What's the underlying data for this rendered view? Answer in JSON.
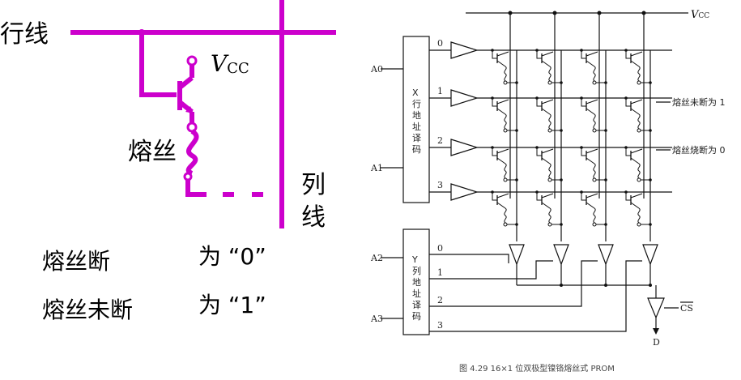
{
  "left": {
    "row_line_label": "行线",
    "col_line_label_1": "列",
    "col_line_label_2": "线",
    "vcc_label_v": "V",
    "vcc_label_sub": "CC",
    "fuse_label": "熔丝",
    "rule1_left": "熔丝断",
    "rule1_right": "为 “0”",
    "rule2_left": "熔丝未断",
    "rule2_right": "为 “1”"
  },
  "right": {
    "vcc_v": "V",
    "vcc_sub": "CC",
    "a0": "A0",
    "a1": "A1",
    "a2": "A2",
    "a3": "A3",
    "x_decoder": [
      "X",
      "行",
      "地",
      "址",
      "译",
      "码"
    ],
    "y_decoder": [
      "Y",
      "列",
      "地",
      "址",
      "译",
      "码"
    ],
    "x_outputs": [
      "0",
      "1",
      "2",
      "3"
    ],
    "y_outputs": [
      "0",
      "1",
      "2",
      "3"
    ],
    "note_intact": "熔丝未断为 1",
    "note_blown": "熔丝烧断为 0",
    "cs_label": "CS",
    "d_label": "D",
    "caption": "图 4.29   16×1 位双极型镍铬熔丝式 PROM"
  },
  "colors": {
    "circuit_magenta": "#cc00cc"
  }
}
